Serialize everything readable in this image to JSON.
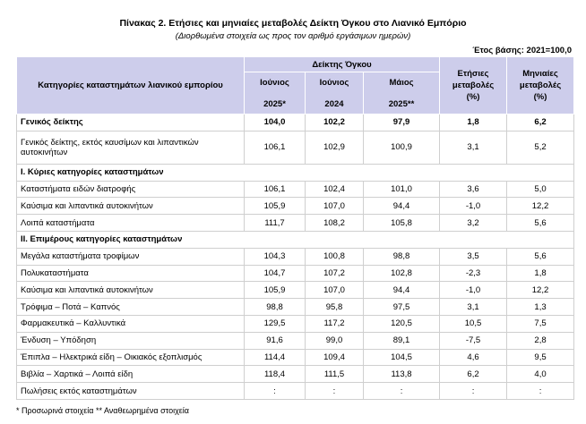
{
  "header": {
    "title": "Πίνακας 2. Ετήσιες και μηνιαίες μεταβολές Δείκτη Όγκου στο Λιανικό Εμπόριο",
    "subtitle": "(Διορθωμένα στοιχεία ως προς τον αριθμό εργάσιμων ημερών)",
    "base_year": "Έτος βάσης: 2021=100,0"
  },
  "table": {
    "category_header": "Κατηγορίες καταστημάτων λιανικού εμπορίου",
    "index_header": "Δείκτης Όγκου",
    "index_columns": [
      [
        "Ιούνιος",
        "2025*"
      ],
      [
        "Ιούνιος",
        "2024"
      ],
      [
        "Μάιος",
        "2025**"
      ]
    ],
    "change_columns": [
      [
        "Ετήσιες",
        "μεταβολές",
        "(%)"
      ],
      [
        "Μηνιαίες",
        "μεταβολές",
        "(%)"
      ]
    ],
    "rows": [
      {
        "label": [
          "Γενικός δείκτης"
        ],
        "bold": true,
        "values": [
          "104,0",
          "102,2",
          "97,9",
          "1,8",
          "6,2"
        ]
      },
      {
        "label": [
          "Γενικός δείκτης, εκτός καυσίμων και λιπαντικών",
          "αυτοκινήτων"
        ],
        "values": [
          "106,1",
          "102,9",
          "100,9",
          "3,1",
          "5,2"
        ]
      },
      {
        "label": [
          "I. Κύριες κατηγορίες καταστημάτων"
        ],
        "section": true
      },
      {
        "label": [
          "Καταστήματα ειδών διατροφής"
        ],
        "values": [
          "106,1",
          "102,4",
          "101,0",
          "3,6",
          "5,0"
        ]
      },
      {
        "label": [
          "Καύσιμα και λιπαντικά αυτοκινήτων"
        ],
        "values": [
          "105,9",
          "107,0",
          "94,4",
          "-1,0",
          "12,2"
        ]
      },
      {
        "label": [
          "Λοιπά καταστήματα"
        ],
        "values": [
          "111,7",
          "108,2",
          "105,8",
          "3,2",
          "5,6"
        ]
      },
      {
        "label": [
          "II. Επιμέρους κατηγορίες καταστημάτων"
        ],
        "section": true
      },
      {
        "label": [
          "Μεγάλα καταστήματα τροφίμων"
        ],
        "values": [
          "104,3",
          "100,8",
          "98,8",
          "3,5",
          "5,6"
        ]
      },
      {
        "label": [
          "Πολυκαταστήματα"
        ],
        "values": [
          "104,7",
          "107,2",
          "102,8",
          "-2,3",
          "1,8"
        ]
      },
      {
        "label": [
          "Καύσιμα και λιπαντικά αυτοκινήτων"
        ],
        "values": [
          "105,9",
          "107,0",
          "94,4",
          "-1,0",
          "12,2"
        ]
      },
      {
        "label": [
          "Τρόφιμα – Ποτά – Καπνός"
        ],
        "values": [
          "98,8",
          "95,8",
          "97,5",
          "3,1",
          "1,3"
        ]
      },
      {
        "label": [
          "Φαρμακευτικά – Καλλυντικά"
        ],
        "values": [
          "129,5",
          "117,2",
          "120,5",
          "10,5",
          "7,5"
        ]
      },
      {
        "label": [
          "Ένδυση – Υπόδηση"
        ],
        "values": [
          "91,6",
          "99,0",
          "89,1",
          "-7,5",
          "2,8"
        ]
      },
      {
        "label": [
          "Έπιπλα – Ηλεκτρικά είδη – Οικιακός εξοπλισμός"
        ],
        "values": [
          "114,4",
          "109,4",
          "104,5",
          "4,6",
          "9,5"
        ]
      },
      {
        "label": [
          "Βιβλία – Χαρτικά – Λοιπά είδη"
        ],
        "values": [
          "118,4",
          "111,5",
          "113,8",
          "6,2",
          "4,0"
        ]
      },
      {
        "label": [
          "Πωλήσεις εκτός καταστημάτων"
        ],
        "values": [
          ":",
          ":",
          ":",
          ":",
          ":"
        ]
      }
    ]
  },
  "footnote": "*  Προσωρινά στοιχεία  **  Αναθεωρημένα στοιχεία"
}
